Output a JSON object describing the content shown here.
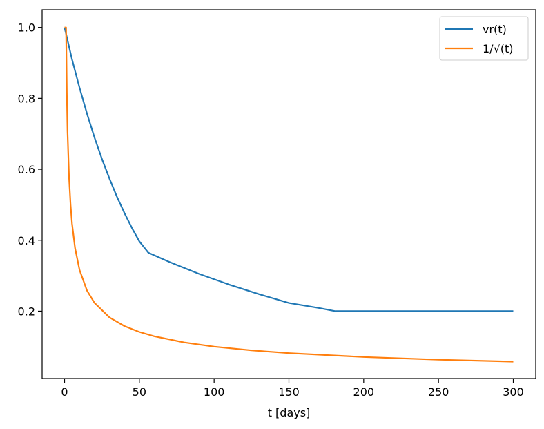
{
  "chart_data": {
    "type": "line",
    "title": "",
    "xlabel": "t [days]",
    "ylabel": "",
    "xlim": [
      -15,
      315
    ],
    "ylim": [
      0.01,
      1.05
    ],
    "xticks": [
      0,
      50,
      100,
      150,
      200,
      250,
      300
    ],
    "xtick_labels": [
      "0",
      "50",
      "100",
      "150",
      "200",
      "250",
      "300"
    ],
    "yticks": [
      0.2,
      0.4,
      0.6,
      0.8,
      1.0
    ],
    "ytick_labels": [
      "0.2",
      "0.4",
      "0.6",
      "0.8",
      "1.0"
    ],
    "grid": false,
    "legend_position": "top-right",
    "series": [
      {
        "name": "vr(t)",
        "color": "#1f77b4",
        "x": [
          0,
          5,
          10,
          15,
          20,
          25,
          30,
          35,
          40,
          45,
          50,
          56,
          70,
          90,
          110,
          130,
          150,
          170,
          181,
          200,
          250,
          300
        ],
        "y": [
          1.0,
          0.91,
          0.83,
          0.757,
          0.69,
          0.629,
          0.574,
          0.523,
          0.477,
          0.435,
          0.397,
          0.365,
          0.339,
          0.305,
          0.275,
          0.248,
          0.223,
          0.209,
          0.2,
          0.2,
          0.2,
          0.2
        ]
      },
      {
        "name": "1/√(t)",
        "color": "#ff7f0e",
        "x": [
          0,
          1,
          1.5,
          2,
          3,
          4,
          5,
          7,
          10,
          15,
          20,
          30,
          40,
          50,
          60,
          80,
          100,
          125,
          150,
          200,
          250,
          300
        ],
        "y": [
          1.0,
          1.0,
          0.8165,
          0.7071,
          0.5774,
          0.5,
          0.4472,
          0.378,
          0.3162,
          0.2582,
          0.2236,
          0.1826,
          0.1581,
          0.1414,
          0.1291,
          0.1118,
          0.1,
          0.0894,
          0.0816,
          0.0707,
          0.0632,
          0.0577
        ]
      }
    ]
  }
}
